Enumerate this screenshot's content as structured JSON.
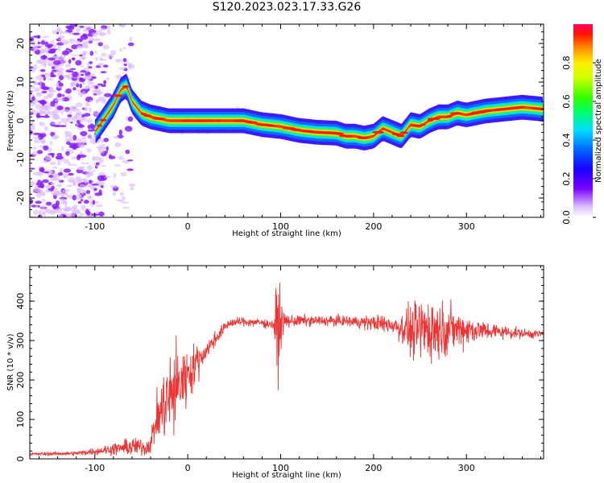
{
  "title": "S120.2023.023.17.33.G26",
  "chart_data": [
    {
      "type": "heatmap",
      "xlabel": "Height of straight line (km)",
      "ylabel": "Frequency (Hz)",
      "xlim": [
        -170,
        383
      ],
      "ylim": [
        -25,
        25
      ],
      "xticks": [
        -100,
        0,
        100,
        200,
        300
      ],
      "yticks": [
        -20,
        -10,
        0,
        10,
        20
      ],
      "colorbar": {
        "label": "Normalized spectral amplitude",
        "ticks": [
          "0.0",
          "0.2",
          "0.4",
          "0.6",
          "0.8"
        ],
        "range": [
          0,
          1
        ]
      },
      "ridge": {
        "x": [
          -100,
          -80,
          -72,
          -66,
          -60,
          -50,
          -40,
          -20,
          0,
          20,
          40,
          60,
          80,
          100,
          120,
          140,
          160,
          170,
          180,
          190,
          200,
          210,
          220,
          230,
          240,
          250,
          260,
          270,
          280,
          290,
          300,
          320,
          340,
          360,
          383
        ],
        "y": [
          -3,
          4,
          8,
          9,
          5,
          2,
          1,
          0,
          0,
          0,
          0,
          0,
          -1,
          -1.5,
          -2.5,
          -3,
          -3.2,
          -4,
          -4,
          -4.5,
          -4,
          -2,
          -3,
          -4,
          -1,
          -1.5,
          0,
          1,
          1,
          2,
          1.5,
          2.5,
          3,
          3.5,
          3
        ]
      },
      "grid": false
    },
    {
      "type": "line",
      "xlabel": "Height of straight line (km)",
      "ylabel": "SNR (10 * v/v)",
      "xlim": [
        -170,
        383
      ],
      "ylim": [
        0,
        490
      ],
      "xticks": [
        -100,
        0,
        100,
        200,
        300
      ],
      "yticks": [
        0,
        100,
        200,
        300,
        400
      ],
      "color": "#ee3333",
      "envelope": {
        "x": [
          -170,
          -120,
          -90,
          -70,
          -55,
          -45,
          -40,
          -35,
          -25,
          -15,
          -5,
          5,
          15,
          25,
          35,
          45,
          60,
          80,
          92,
          96,
          98,
          100,
          104,
          115,
          140,
          160,
          180,
          200,
          220,
          235,
          245,
          255,
          265,
          275,
          290,
          305,
          320,
          340,
          360,
          383
        ],
        "base": [
          12,
          14,
          22,
          28,
          32,
          28,
          40,
          90,
          140,
          170,
          200,
          230,
          260,
          290,
          320,
          345,
          348,
          345,
          340,
          330,
          335,
          345,
          348,
          350,
          350,
          350,
          348,
          345,
          340,
          330,
          320,
          330,
          330,
          330,
          330,
          328,
          325,
          322,
          318,
          316
        ],
        "amp": [
          5,
          6,
          14,
          22,
          30,
          25,
          30,
          60,
          120,
          140,
          110,
          70,
          40,
          25,
          20,
          14,
          14,
          14,
          14,
          150,
          180,
          70,
          22,
          18,
          16,
          16,
          18,
          24,
          30,
          55,
          95,
          110,
          100,
          80,
          60,
          45,
          30,
          20,
          15,
          12
        ]
      },
      "grid": false
    }
  ]
}
